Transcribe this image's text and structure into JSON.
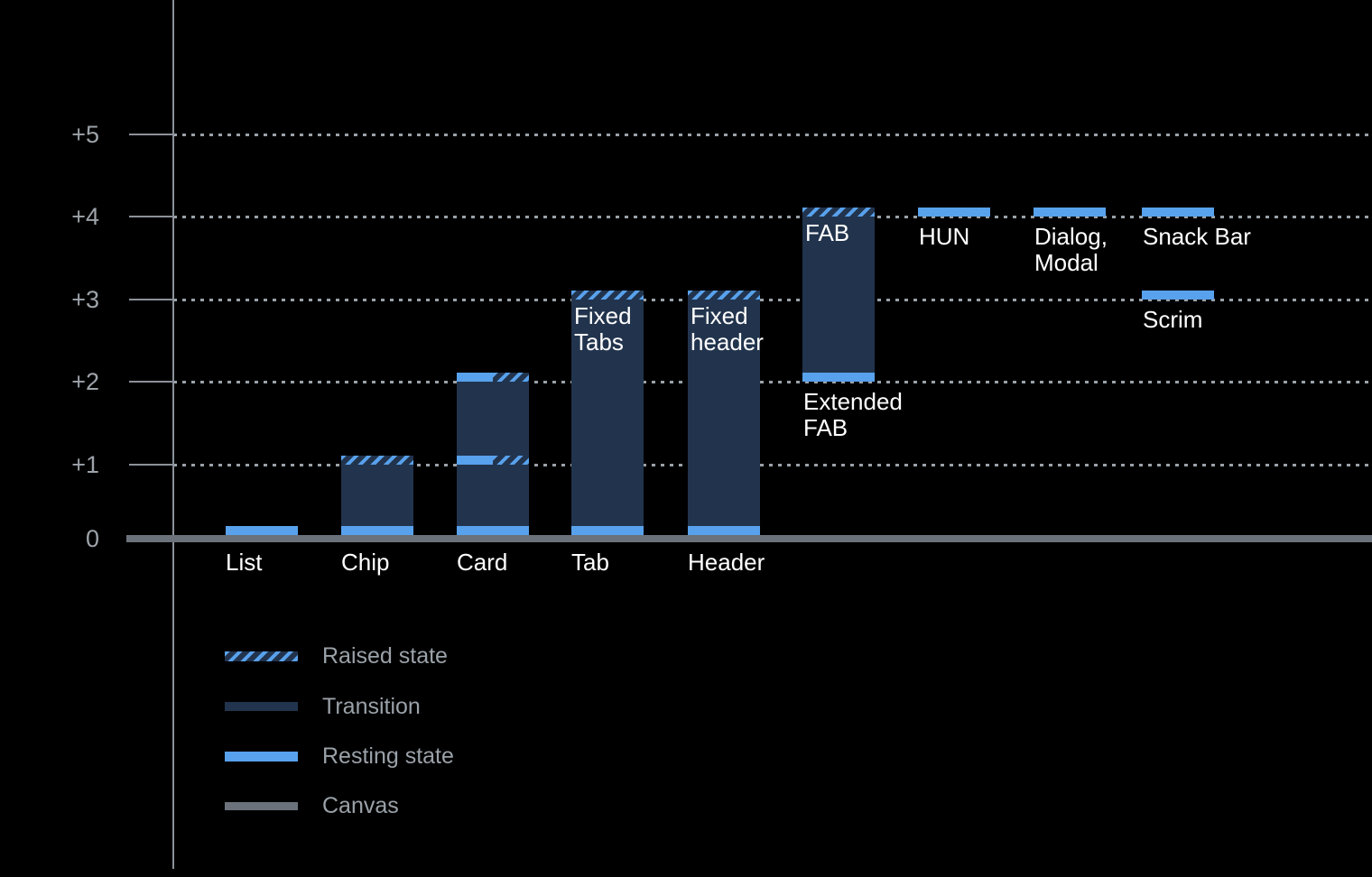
{
  "colors": {
    "background": "#000000",
    "transition": "#22344d",
    "resting_state": "#58a1ec",
    "canvas": "#6b727c",
    "axis": "#8b9199",
    "gridline": "#9aa1a8",
    "axis_label": "#9da3a9",
    "bar_label": "#ffffff",
    "legend_label": "#9aa1a8"
  },
  "chart_data": {
    "type": "bar",
    "title": "",
    "xlabel": "",
    "ylabel": "",
    "ylim": [
      0,
      5.5
    ],
    "grid": "dotted horizontal lines at +1 through +5",
    "legend_position": "bottom-left",
    "y_ticks": [
      {
        "level": 5,
        "text": "+5"
      },
      {
        "level": 4,
        "text": "+4"
      },
      {
        "level": 3,
        "text": "+3"
      },
      {
        "level": 2,
        "text": "+2"
      },
      {
        "level": 1,
        "text": "+1"
      },
      {
        "level": 0,
        "text": "0"
      }
    ],
    "bars": [
      {
        "name": "list",
        "base_label": "List",
        "segments": [
          {
            "kind": "resting",
            "level": 0
          }
        ]
      },
      {
        "name": "chip",
        "base_label": "Chip",
        "segments": [
          {
            "kind": "resting",
            "level": 0
          },
          {
            "kind": "transition",
            "from": 0,
            "to": 1
          },
          {
            "kind": "raised",
            "level": 1
          }
        ]
      },
      {
        "name": "card",
        "base_label": "Card",
        "segments": [
          {
            "kind": "resting",
            "level": 0
          },
          {
            "kind": "transition",
            "from": 0,
            "to": 1
          },
          {
            "kind": "split",
            "level": 1
          },
          {
            "kind": "transition",
            "from": 1,
            "to": 2
          },
          {
            "kind": "split",
            "level": 2
          }
        ]
      },
      {
        "name": "tab",
        "base_label": "Tab",
        "inner_label": "Fixed\nTabs",
        "segments": [
          {
            "kind": "resting",
            "level": 0
          },
          {
            "kind": "transition",
            "from": 0,
            "to": 3
          },
          {
            "kind": "raised",
            "level": 3
          }
        ]
      },
      {
        "name": "header",
        "base_label": "Header",
        "inner_label": "Fixed\nheader",
        "segments": [
          {
            "kind": "resting",
            "level": 0
          },
          {
            "kind": "transition",
            "from": 0,
            "to": 3
          },
          {
            "kind": "raised",
            "level": 3
          }
        ]
      },
      {
        "name": "fab",
        "inner_label": "FAB",
        "under_label": "Extended\nFAB",
        "segments": [
          {
            "kind": "resting",
            "level": 2
          },
          {
            "kind": "transition",
            "from": 2,
            "to": 4
          },
          {
            "kind": "raised",
            "level": 4
          }
        ]
      },
      {
        "name": "hun",
        "under_label": "HUN",
        "segments": [
          {
            "kind": "resting",
            "level": 4
          }
        ]
      },
      {
        "name": "dialog-modal",
        "under_label": "Dialog,\nModal",
        "segments": [
          {
            "kind": "resting",
            "level": 4
          }
        ]
      },
      {
        "name": "snack-bar",
        "under_label": "Snack Bar",
        "segments": [
          {
            "kind": "resting",
            "level": 4
          }
        ]
      },
      {
        "name": "scrim",
        "under_label": "Scrim",
        "segments": [
          {
            "kind": "resting",
            "level": 3
          }
        ]
      }
    ]
  },
  "legend": {
    "items": [
      {
        "key": "raised",
        "label": "Raised state"
      },
      {
        "key": "transition",
        "label": "Transition"
      },
      {
        "key": "resting",
        "label": "Resting state"
      },
      {
        "key": "canvas",
        "label": "Canvas"
      }
    ]
  }
}
